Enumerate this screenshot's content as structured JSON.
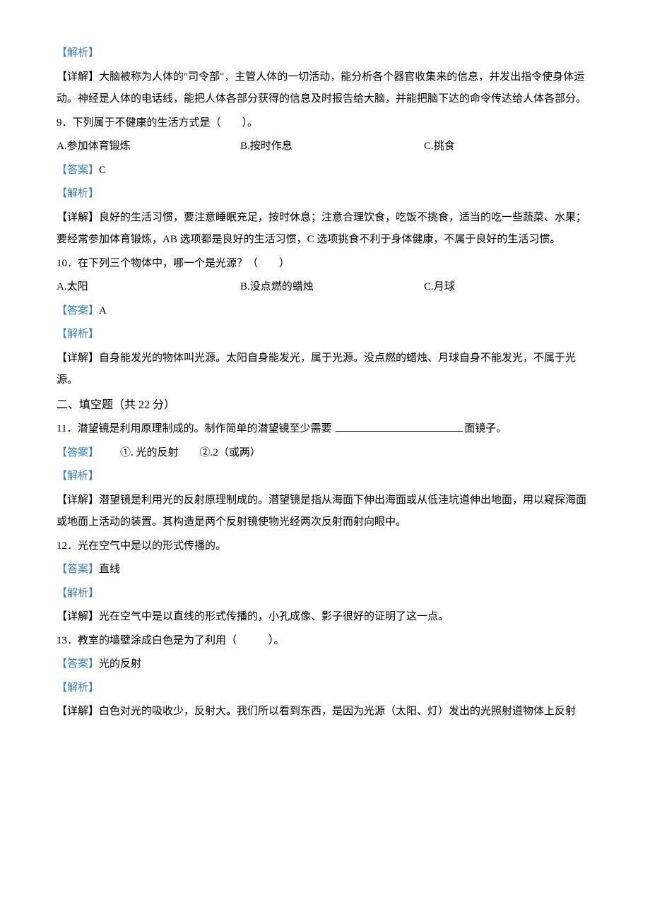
{
  "tags": {
    "analysis": "【解析】",
    "detail": "【详解】",
    "answer": "【答案】"
  },
  "q8": {
    "detail": "大脑被称为人体的\"司令部\"，主管人体的一切活动，能分析各个器官收集来的信息，并发出指令使身体运动。神经是人体的电话线，能把人体各部分获得的信息及时报告给大脑，并能把脑下达的命令传达给人体各部分。"
  },
  "q9": {
    "num": "9",
    "stem": "．下列属于不健康的生活方式是（　　）。",
    "a": "A.参加体育锻炼",
    "b": "B.按时作息",
    "c": "C.挑食",
    "answer": "C",
    "detail": "良好的生活习惯，要注意睡眠充足，按时休息；注意合理饮食，吃饭不挑食，适当的吃一些蔬菜、水果；要经常参加体育锻炼，AB 选项都是良好的生活习惯，C 选项挑食不利于身体健康，不属于良好的生活习惯。"
  },
  "q10": {
    "num": "10",
    "stem": "．在下列三个物体中，哪一个是光源？（　　）",
    "a": "A.太阳",
    "b": "B.没点燃的蜡烛",
    "c": "C.月球",
    "answer": "A",
    "detail": "自身能发光的物体叫光源。太阳自身能发光，属于光源。没点燃的蜡烛、月球自身不能发光，不属于光源。"
  },
  "section2": "二、填空题（共 22 分）",
  "q11": {
    "num": "11",
    "stem_before": "．潜望镜是利用原理制成的。制作简单的潜望镜至少需要 ",
    "stem_after": "面镜子。",
    "answer1_label": "①.",
    "answer1": " 光的反射",
    "answer2_label": "②.",
    "answer2": "2（或两）",
    "detail": "潜望镜是利用光的反射原理制成的。潜望镜是指从海面下伸出海面或从低洼坑道伸出地面，用以窥探海面或地面上活动的装置。其构造是两个反射镜使物光经两次反射而射向眼中。"
  },
  "q12": {
    "num": "12",
    "stem": "．光在空气中是以的形式传播的。",
    "answer": "直线",
    "detail": "光在空气中是以直线的形式传播的，小孔成像、影子很好的证明了这一点。"
  },
  "q13": {
    "num": "13",
    "stem": "．教室的墙壁涂成白色是为了利用（　　　）。",
    "answer": "光的反射",
    "detail": "白色对光的吸收少，反射大。我们所以看到东西，是因为光源（太阳、灯）发出的光照射道物体上反射"
  }
}
